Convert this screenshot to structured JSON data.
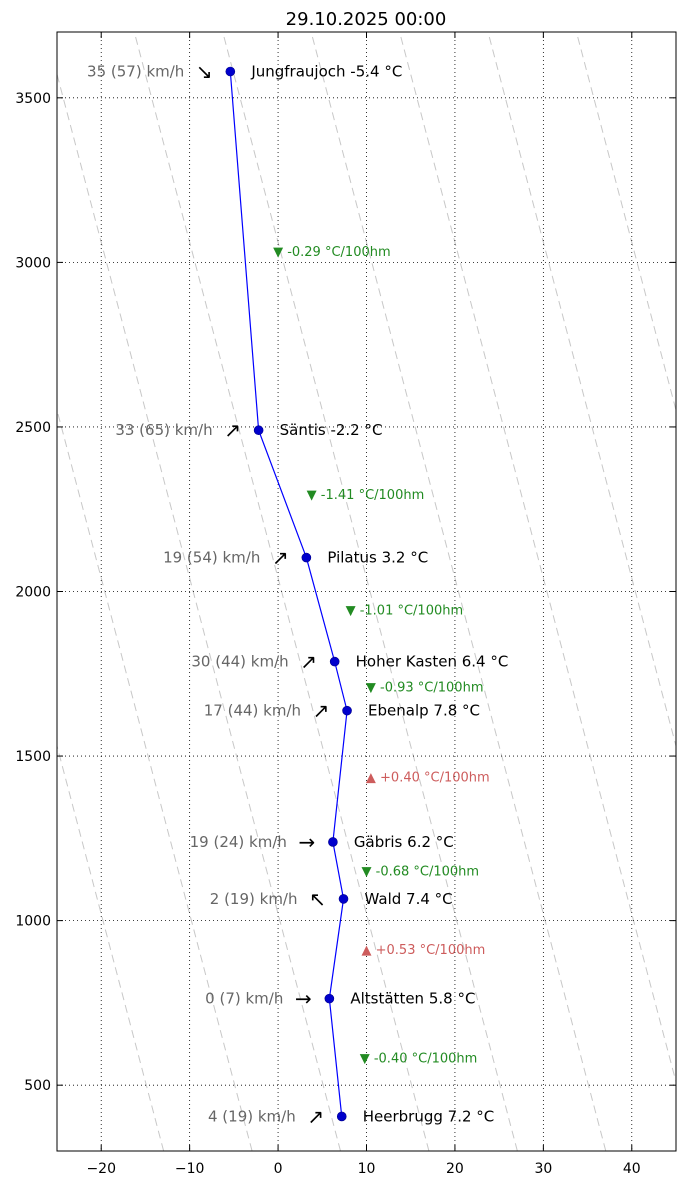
{
  "chart_data": {
    "type": "line",
    "title": "29.10.2025 00:00",
    "xlim": [
      -25,
      45
    ],
    "ylim": [
      300,
      3700
    ],
    "xticks": [
      -20,
      -10,
      0,
      10,
      20,
      30,
      40
    ],
    "yticks": [
      500,
      1000,
      1500,
      2000,
      2500,
      3000,
      3500
    ],
    "xtick_labels": [
      "−20",
      "−10",
      "0",
      "10",
      "20",
      "30",
      "40"
    ],
    "ytick_labels": [
      "500",
      "1000",
      "1500",
      "2000",
      "2500",
      "3000",
      "3500"
    ],
    "grid": true,
    "colors": {
      "line": "#0000ff",
      "marker": "#0000cc",
      "grid": "#000000",
      "dry_adiabat": "#c8c8c8",
      "wind_text": "#666666",
      "lapse_negative": "#228b22",
      "lapse_positive": "#cd5c5c"
    },
    "stations": [
      {
        "name": "Jungfraujoch",
        "altitude": 3580,
        "temp": -5.4,
        "label": "Jungfraujoch -5.4 °C",
        "wind": "35 (57) km/h",
        "wind_arrow": "↘"
      },
      {
        "name": "Säntis",
        "altitude": 2490,
        "temp": -2.2,
        "label": "Säntis -2.2 °C",
        "wind": "33 (65) km/h",
        "wind_arrow": "↗"
      },
      {
        "name": "Pilatus",
        "altitude": 2103,
        "temp": 3.2,
        "label": "Pilatus 3.2 °C",
        "wind": "19 (54) km/h",
        "wind_arrow": "↗"
      },
      {
        "name": "Hoher Kasten",
        "altitude": 1787,
        "temp": 6.4,
        "label": "Hoher Kasten 6.4 °C",
        "wind": "30 (44) km/h",
        "wind_arrow": "↗"
      },
      {
        "name": "Ebenalp",
        "altitude": 1638,
        "temp": 7.8,
        "label": "Ebenalp 7.8 °C",
        "wind": "17 (44) km/h",
        "wind_arrow": "↗"
      },
      {
        "name": "Gäbris",
        "altitude": 1239,
        "temp": 6.2,
        "label": "Gäbris 6.2 °C",
        "wind": "19 (24) km/h",
        "wind_arrow": "→"
      },
      {
        "name": "Wald",
        "altitude": 1066,
        "temp": 7.4,
        "label": "Wald 7.4 °C",
        "wind": "2 (19) km/h",
        "wind_arrow": "↖"
      },
      {
        "name": "Altstätten",
        "altitude": 763,
        "temp": 5.8,
        "label": "Altstätten 5.8 °C",
        "wind": "0 (7) km/h",
        "wind_arrow": "→"
      },
      {
        "name": "Heerbrugg",
        "altitude": 405,
        "temp": 7.2,
        "label": "Heerbrugg 7.2 °C",
        "wind": "4 (19) km/h",
        "wind_arrow": "↗"
      }
    ],
    "lapse_rates": [
      {
        "label": "▼ -0.29 °C/100hm",
        "x": 0,
        "altitude": 3035,
        "sign": "negative"
      },
      {
        "label": "▼ -1.41 °C/100hm",
        "x": 3.8,
        "altitude": 2296,
        "sign": "negative"
      },
      {
        "label": "▼ -1.01 °C/100hm",
        "x": 8.2,
        "altitude": 1945,
        "sign": "negative"
      },
      {
        "label": "▼ -0.93 °C/100hm",
        "x": 10.5,
        "altitude": 1712,
        "sign": "negative"
      },
      {
        "label": "▲ +0.40 °C/100hm",
        "x": 10.5,
        "altitude": 1438,
        "sign": "positive"
      },
      {
        "label": "▼ -0.68 °C/100hm",
        "x": 10.0,
        "altitude": 1152,
        "sign": "negative"
      },
      {
        "label": "▲ +0.53 °C/100hm",
        "x": 10.0,
        "altitude": 914,
        "sign": "positive"
      },
      {
        "label": "▼ -0.40 °C/100hm",
        "x": 9.8,
        "altitude": 584,
        "sign": "negative"
      }
    ],
    "dry_adiabats_surface_temp": [
      -10,
      0,
      10,
      20,
      30,
      40,
      50,
      60,
      70
    ]
  }
}
